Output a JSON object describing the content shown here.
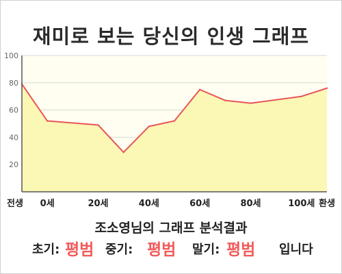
{
  "title": "재미로 보는 당신의 인생 그래프",
  "chart_data": {
    "type": "area",
    "title": "재미로 보는 당신의 인생 그래프",
    "x": [
      -10,
      0,
      20,
      30,
      40,
      50,
      60,
      70,
      80,
      100,
      110
    ],
    "y": [
      79,
      52,
      49,
      29,
      48,
      52,
      75,
      67,
      65,
      70,
      76
    ],
    "xlim": [
      -10,
      110
    ],
    "ylim": [
      0,
      100
    ],
    "yticks": [
      20,
      40,
      60,
      80,
      100
    ],
    "xtick_labels": [
      {
        "x": -10,
        "label": "전생"
      },
      {
        "x": 0,
        "label": "0세"
      },
      {
        "x": 20,
        "label": "20세"
      },
      {
        "x": 40,
        "label": "40세"
      },
      {
        "x": 60,
        "label": "60세"
      },
      {
        "x": 80,
        "label": "80세"
      },
      {
        "x": 100,
        "label": "100세"
      },
      {
        "x": 110,
        "label": "환생"
      }
    ],
    "grid": true,
    "line_color": "#e8545a",
    "fill_color": "#fbf7b4",
    "plot_bg": "#fffef0"
  },
  "summary": {
    "title": "조소영님의 그래프 분석결과",
    "early_label": "초기:",
    "early_value": "평범",
    "mid_label": "중기:",
    "mid_value": "평범",
    "late_label": "말기:",
    "late_value": "평범",
    "suffix": "입니다"
  }
}
